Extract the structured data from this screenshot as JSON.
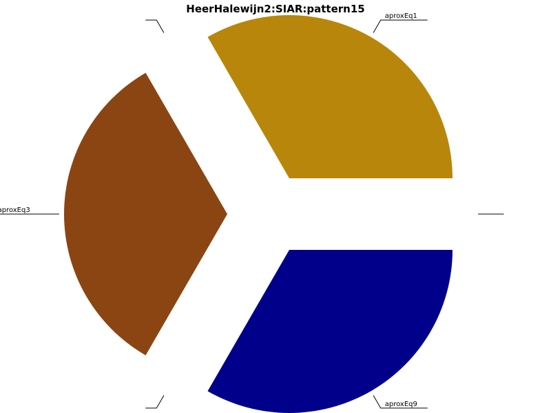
{
  "chart_data": {
    "type": "pie",
    "title": "HeerHalewijn2:SIAR:pattern15",
    "slices": [
      {
        "label": "aproxEq1",
        "value": 1,
        "color": "#B8860B"
      },
      {
        "label": "",
        "value": 0,
        "color": "#B8860B"
      },
      {
        "label": "aproxEq3",
        "value": 1,
        "color": "#8B4513"
      },
      {
        "label": "",
        "value": 0,
        "color": "#8B4513"
      },
      {
        "label": "aproxEq9",
        "value": 1,
        "color": "#00008B"
      },
      {
        "label": "",
        "value": 0,
        "color": "#00008B"
      }
    ],
    "exploded": true
  }
}
